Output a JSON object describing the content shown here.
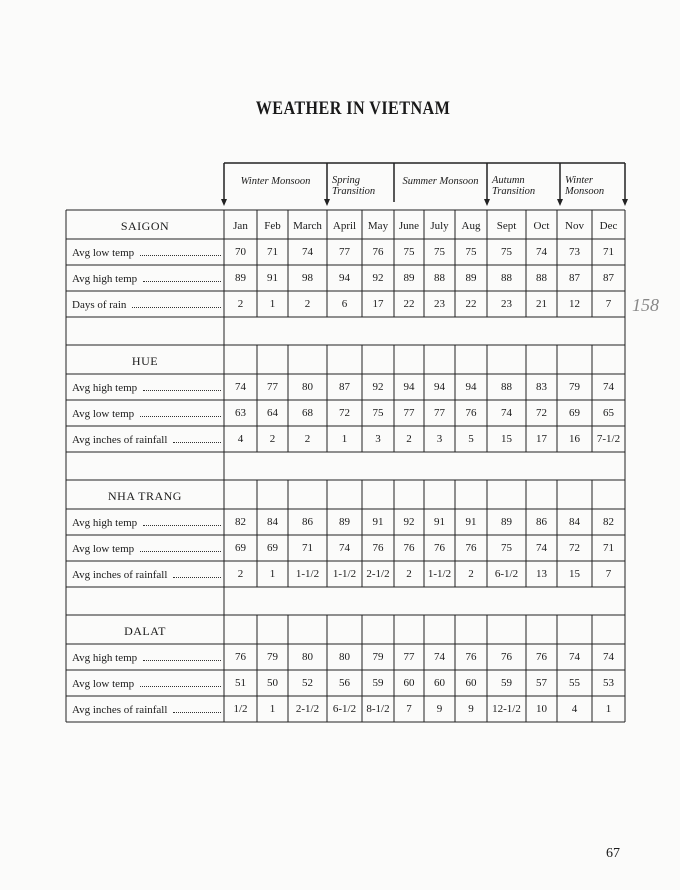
{
  "title": "WEATHER IN VIETNAM",
  "seasons": [
    "Winter Monsoon",
    "Spring Transition",
    "Summer Monsoon",
    "Autumn Transition",
    "Winter Monsoon"
  ],
  "months": [
    "Jan",
    "Feb",
    "March",
    "April",
    "May",
    "June",
    "July",
    "Aug",
    "Sept",
    "Oct",
    "Nov",
    "Dec"
  ],
  "table": {
    "sections": [
      {
        "city": "SAIGON",
        "rows": [
          {
            "label": "Avg low temp",
            "values": [
              "70",
              "71",
              "74",
              "77",
              "76",
              "75",
              "75",
              "75",
              "75",
              "74",
              "73",
              "71"
            ]
          },
          {
            "label": "Avg high temp",
            "values": [
              "89",
              "91",
              "98",
              "94",
              "92",
              "89",
              "88",
              "89",
              "88",
              "88",
              "87",
              "87"
            ]
          },
          {
            "label": "Days of rain",
            "values": [
              "2",
              "1",
              "2",
              "6",
              "17",
              "22",
              "23",
              "22",
              "23",
              "21",
              "12",
              "7"
            ]
          }
        ]
      },
      {
        "city": "HUE",
        "rows": [
          {
            "label": "Avg high temp",
            "values": [
              "74",
              "77",
              "80",
              "87",
              "92",
              "94",
              "94",
              "94",
              "88",
              "83",
              "79",
              "74"
            ]
          },
          {
            "label": "Avg low temp",
            "values": [
              "63",
              "64",
              "68",
              "72",
              "75",
              "77",
              "77",
              "76",
              "74",
              "72",
              "69",
              "65"
            ]
          },
          {
            "label": "Avg inches of rainfall",
            "values": [
              "4",
              "2",
              "2",
              "1",
              "3",
              "2",
              "3",
              "5",
              "15",
              "17",
              "16",
              "7-1/2"
            ]
          }
        ]
      },
      {
        "city": "NHA TRANG",
        "rows": [
          {
            "label": "Avg high temp",
            "values": [
              "82",
              "84",
              "86",
              "89",
              "91",
              "92",
              "91",
              "91",
              "89",
              "86",
              "84",
              "82"
            ]
          },
          {
            "label": "Avg low temp",
            "values": [
              "69",
              "69",
              "71",
              "74",
              "76",
              "76",
              "76",
              "76",
              "75",
              "74",
              "72",
              "71"
            ]
          },
          {
            "label": "Avg inches of rainfall",
            "values": [
              "2",
              "1",
              "1-1/2",
              "1-1/2",
              "2-1/2",
              "2",
              "1-1/2",
              "2",
              "6-1/2",
              "13",
              "15",
              "7"
            ]
          }
        ]
      },
      {
        "city": "DALAT",
        "rows": [
          {
            "label": "Avg high temp",
            "values": [
              "76",
              "79",
              "80",
              "80",
              "79",
              "77",
              "74",
              "76",
              "76",
              "76",
              "74",
              "74"
            ]
          },
          {
            "label": "Avg low temp",
            "values": [
              "51",
              "50",
              "52",
              "56",
              "59",
              "60",
              "60",
              "60",
              "59",
              "57",
              "55",
              "53"
            ]
          },
          {
            "label": "Avg inches of rainfall",
            "values": [
              "1/2",
              "1",
              "2-1/2",
              "6-1/2",
              "8-1/2",
              "7",
              "9",
              "9",
              "12-1/2",
              "10",
              "4",
              "1"
            ]
          }
        ]
      }
    ]
  },
  "annotation": "158",
  "page_number": "67"
}
